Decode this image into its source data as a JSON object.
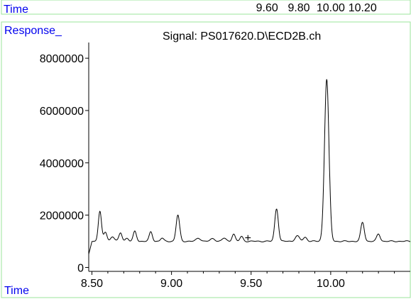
{
  "chart_data": {
    "type": "line",
    "signal_title": "Signal: PS017620.D\\ECD2B.ch",
    "ylabel": "Response_",
    "top_axis_label": "Time",
    "xlabel": "Time",
    "top_ticks": [
      "9.60",
      "9.80",
      "10.00",
      "10.20"
    ],
    "x_ticks": [
      "8.50",
      "9.00",
      "9.50",
      "10.00"
    ],
    "y_ticks": [
      "0",
      "2000000",
      "4000000",
      "6000000",
      "8000000"
    ],
    "xlim": [
      8.48,
      10.5
    ],
    "ylim": [
      -150000,
      8600000
    ],
    "baseline": 1000000,
    "marker": {
      "symbol": "+",
      "x": 9.48,
      "y": 1150000
    },
    "series": [
      {
        "peaks": [
          {
            "x": 8.55,
            "height": 1150000,
            "width": 0.01
          },
          {
            "x": 8.585,
            "height": 350000,
            "width": 0.01
          },
          {
            "x": 8.63,
            "height": 180000,
            "width": 0.012
          },
          {
            "x": 8.68,
            "height": 320000,
            "width": 0.01
          },
          {
            "x": 8.72,
            "height": 120000,
            "width": 0.01
          },
          {
            "x": 8.77,
            "height": 380000,
            "width": 0.01
          },
          {
            "x": 8.87,
            "height": 360000,
            "width": 0.01
          },
          {
            "x": 8.94,
            "height": 120000,
            "width": 0.01
          },
          {
            "x": 9.04,
            "height": 1000000,
            "width": 0.011
          },
          {
            "x": 9.17,
            "height": 120000,
            "width": 0.014
          },
          {
            "x": 9.26,
            "height": 100000,
            "width": 0.014
          },
          {
            "x": 9.33,
            "height": 120000,
            "width": 0.012
          },
          {
            "x": 9.39,
            "height": 280000,
            "width": 0.01
          },
          {
            "x": 9.44,
            "height": 180000,
            "width": 0.01
          },
          {
            "x": 9.66,
            "height": 1250000,
            "width": 0.011
          },
          {
            "x": 9.79,
            "height": 200000,
            "width": 0.014
          },
          {
            "x": 9.84,
            "height": 150000,
            "width": 0.012
          },
          {
            "x": 9.975,
            "height": 6200000,
            "width": 0.014
          },
          {
            "x": 10.2,
            "height": 720000,
            "width": 0.011
          },
          {
            "x": 10.3,
            "height": 280000,
            "width": 0.011
          }
        ]
      }
    ]
  }
}
